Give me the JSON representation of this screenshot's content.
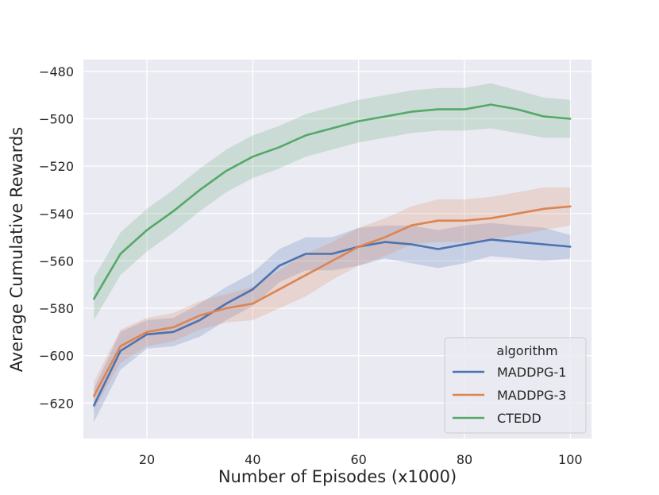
{
  "chart_data": {
    "type": "line",
    "title": "",
    "xlabel": "Number of Episodes (x1000)",
    "ylabel": "Average Cumulative Rewards",
    "xlim": [
      8,
      104
    ],
    "ylim": [
      -635,
      -475
    ],
    "xticks": [
      20,
      40,
      60,
      80,
      100
    ],
    "yticks": [
      -620,
      -600,
      -580,
      -560,
      -540,
      -520,
      -500,
      -480
    ],
    "xtick_labels": [
      "20",
      "40",
      "60",
      "80",
      "100"
    ],
    "ytick_labels": [
      "−620",
      "−600",
      "−580",
      "−560",
      "−540",
      "−520",
      "−500",
      "−480"
    ],
    "grid": true,
    "legend": {
      "title": "algorithm",
      "placement": "lower-right",
      "entries": [
        "MADDPG-1",
        "MADDPG-3",
        "CTEDD"
      ]
    },
    "x": [
      10,
      15,
      20,
      25,
      30,
      35,
      40,
      45,
      50,
      55,
      60,
      65,
      70,
      75,
      80,
      85,
      90,
      95,
      100
    ],
    "series": [
      {
        "name": "MADDPG-1",
        "color": "#4c72b0",
        "values": [
          -621,
          -598,
          -591,
          -590,
          -585,
          -578,
          -572,
          -562,
          -557,
          -557,
          -554,
          -552,
          -553,
          -555,
          -553,
          -551,
          -552,
          -553,
          -554
        ],
        "lower": [
          -628,
          -606,
          -597,
          -596,
          -592,
          -585,
          -579,
          -569,
          -564,
          -564,
          -562,
          -559,
          -561,
          -563,
          -561,
          -558,
          -559,
          -560,
          -559
        ],
        "upper": [
          -614,
          -590,
          -585,
          -584,
          -578,
          -571,
          -565,
          -555,
          -550,
          -550,
          -546,
          -545,
          -545,
          -547,
          -545,
          -544,
          -545,
          -546,
          -549
        ]
      },
      {
        "name": "MADDPG-3",
        "color": "#dd8452",
        "values": [
          -617,
          -596,
          -590,
          -588,
          -583,
          -580,
          -578,
          -572,
          -566,
          -560,
          -554,
          -550,
          -545,
          -543,
          -543,
          -542,
          -540,
          -538,
          -537
        ],
        "lower": [
          -623,
          -603,
          -596,
          -594,
          -589,
          -586,
          -585,
          -580,
          -575,
          -568,
          -562,
          -558,
          -553,
          -552,
          -552,
          -551,
          -549,
          -547,
          -545
        ],
        "upper": [
          -611,
          -589,
          -584,
          -582,
          -577,
          -574,
          -571,
          -564,
          -557,
          -552,
          -546,
          -542,
          -537,
          -534,
          -534,
          -533,
          -531,
          -529,
          -529
        ]
      },
      {
        "name": "CTEDD",
        "color": "#55a868",
        "values": [
          -576,
          -557,
          -547,
          -539,
          -530,
          -522,
          -516,
          -512,
          -507,
          -504,
          -501,
          -499,
          -497,
          -496,
          -496,
          -494,
          -496,
          -499,
          -500
        ],
        "lower": [
          -585,
          -566,
          -556,
          -548,
          -539,
          -531,
          -525,
          -521,
          -516,
          -513,
          -510,
          -508,
          -506,
          -505,
          -505,
          -504,
          -506,
          -508,
          -508
        ],
        "upper": [
          -567,
          -548,
          -538,
          -530,
          -521,
          -513,
          -507,
          -503,
          -498,
          -495,
          -492,
          -490,
          -488,
          -487,
          -487,
          -485,
          -488,
          -491,
          -492
        ]
      }
    ]
  }
}
